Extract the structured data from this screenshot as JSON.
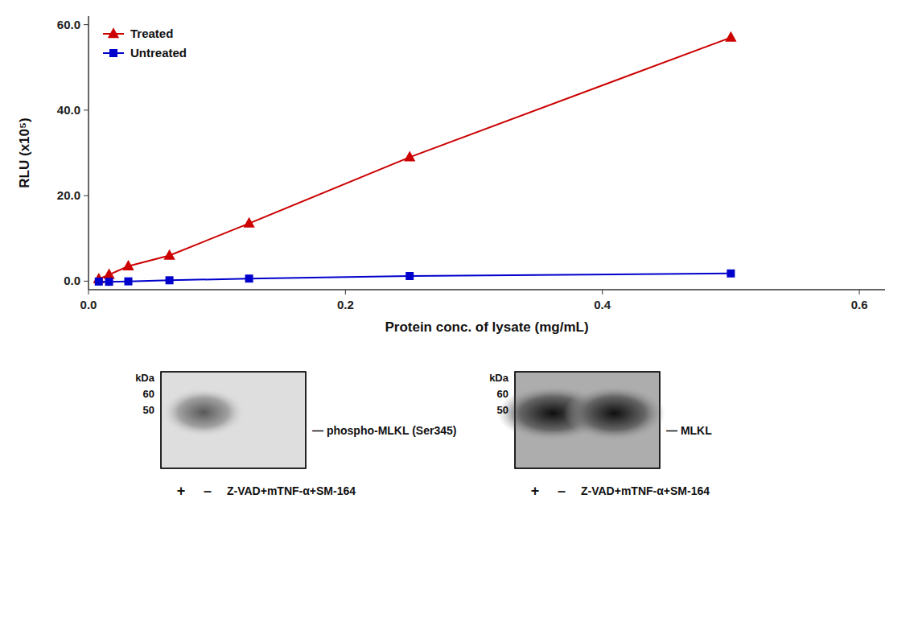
{
  "chart_data": {
    "type": "line",
    "xlabel": "Protein conc. of lysate (mg/mL)",
    "ylabel": "RLU (x10⁵)",
    "x": [
      0.008,
      0.016,
      0.031,
      0.063,
      0.125,
      0.25,
      0.5
    ],
    "series": [
      {
        "name": "Treated",
        "color": "#cc0000",
        "marker": "triangle",
        "values": [
          0.5,
          1.5,
          3.5,
          6.0,
          13.5,
          29.0,
          57.0
        ]
      },
      {
        "name": "Untreated",
        "color": "#0000cc",
        "marker": "square",
        "values": [
          -0.1,
          -0.15,
          -0.05,
          0.2,
          0.6,
          1.2,
          1.8
        ]
      }
    ],
    "xlim": [
      0.0,
      0.62
    ],
    "ylim": [
      -2.0,
      62.0
    ],
    "xticks": [
      {
        "value": 0.0,
        "label": "0.0"
      },
      0.2,
      0.4,
      0.6
    ],
    "yticks": [
      {
        "value": 0.0,
        "label": "0.0"
      },
      {
        "value": 20.0,
        "label": "20.0"
      },
      {
        "value": 40.0,
        "label": "40.0"
      },
      {
        "value": 60.0,
        "label": "60.0"
      }
    ],
    "grid": false,
    "legend": "upper left",
    "annotations": [
      "kDa",
      "60",
      "50",
      "— phospho-MLKL (Ser345)",
      "+",
      "–",
      "Z-VAD+mTNF-α+SM-164",
      "kDa",
      "60",
      "50",
      "— MLKL",
      "+",
      "–",
      "Z-VAD+mTNF-α+SM-164"
    ]
  }
}
